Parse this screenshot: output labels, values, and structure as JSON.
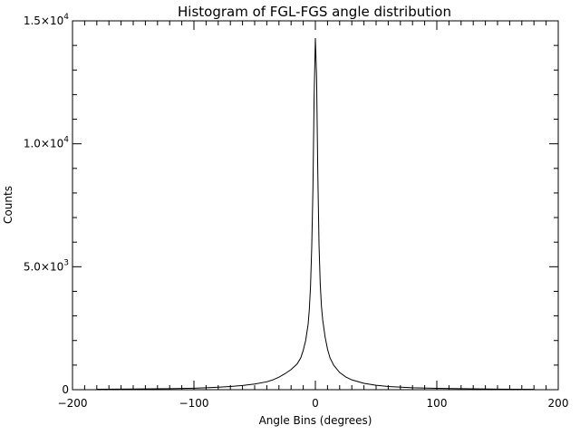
{
  "chart_data": {
    "type": "line",
    "title": "Histogram of FGL-FGS angle distribution",
    "xlabel": "Angle Bins (degrees)",
    "ylabel": "Counts",
    "xlim": [
      -200,
      200
    ],
    "ylim": [
      0,
      15000
    ],
    "x_major_ticks": [
      -200,
      -100,
      0,
      100,
      200
    ],
    "x_minor_step": 10,
    "y_major_ticks": [
      0,
      5000,
      10000,
      15000
    ],
    "y_tick_labels": [
      {
        "base": "0",
        "exp": ""
      },
      {
        "base": "5.0×10",
        "exp": "3"
      },
      {
        "base": "1.0×10",
        "exp": "4"
      },
      {
        "base": "1.5×10",
        "exp": "4"
      }
    ],
    "y_minor_step": 1000,
    "grid": false,
    "series": [
      {
        "x": [
          -180,
          -150,
          -120,
          -100,
          -90,
          -80,
          -70,
          -60,
          -50,
          -40,
          -35,
          -30,
          -25,
          -20,
          -15,
          -12,
          -10,
          -8,
          -6,
          -5,
          -4,
          -3,
          -2,
          -1,
          0,
          1,
          2,
          3,
          4,
          5,
          6,
          8,
          10,
          12,
          15,
          20,
          25,
          30,
          40,
          50,
          60,
          80,
          100,
          120,
          150,
          180
        ],
        "y": [
          20,
          30,
          40,
          60,
          80,
          100,
          130,
          170,
          230,
          320,
          400,
          510,
          650,
          820,
          1050,
          1300,
          1600,
          2000,
          2650,
          3250,
          4200,
          5800,
          8200,
          12000,
          14300,
          12700,
          8800,
          5900,
          4300,
          3400,
          2850,
          2150,
          1650,
          1300,
          1000,
          700,
          520,
          400,
          260,
          180,
          130,
          80,
          55,
          40,
          25,
          15
        ]
      }
    ]
  }
}
